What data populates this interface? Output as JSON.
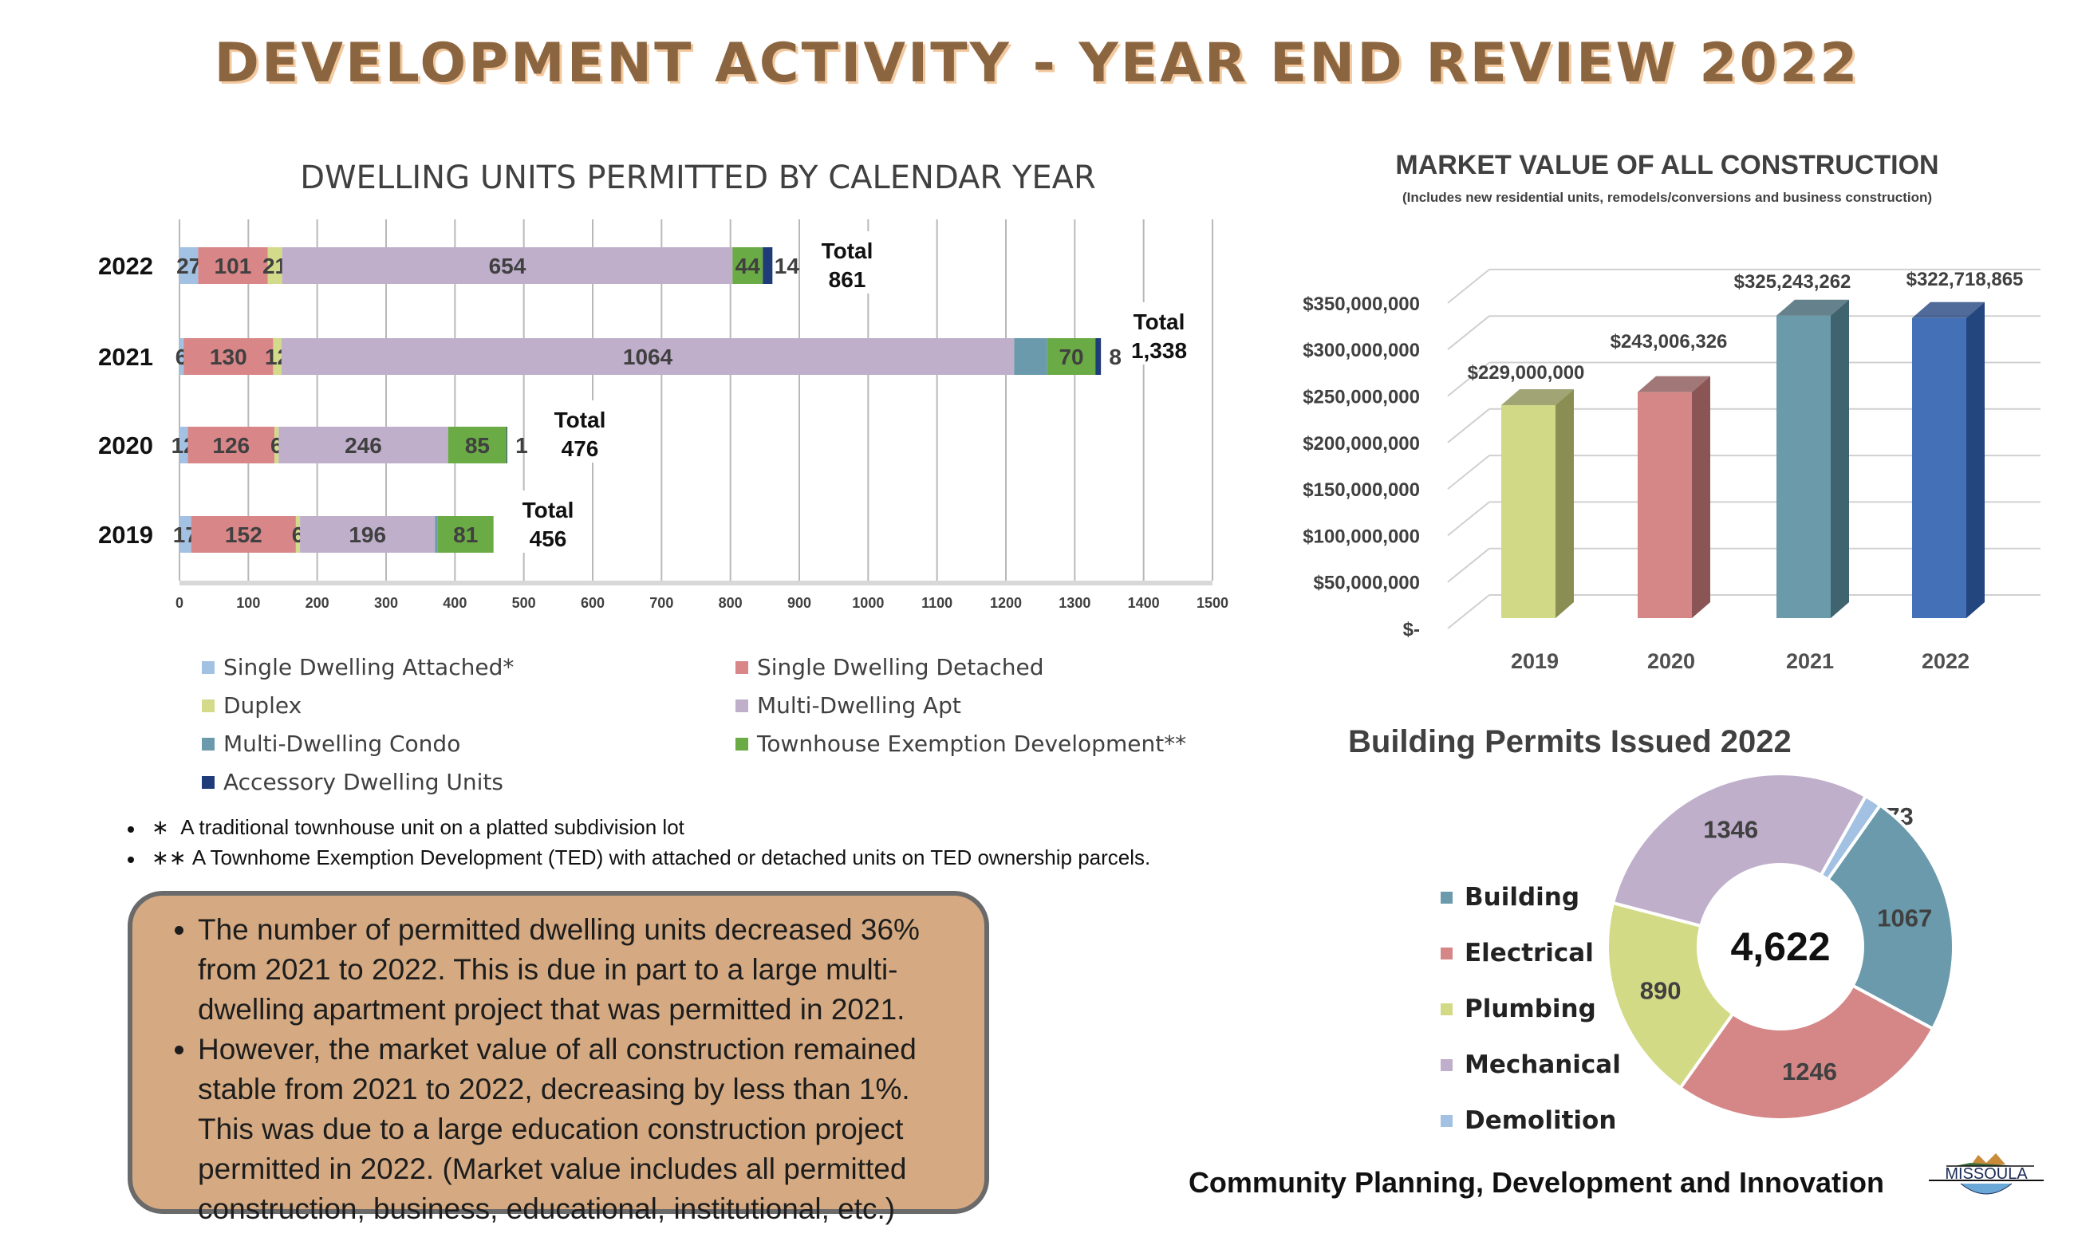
{
  "title": "DEVELOPMENT ACTIVITY - YEAR END REVIEW 2022",
  "chart_data": [
    {
      "type": "bar",
      "orientation": "horizontal",
      "stacked": true,
      "title": "DWELLING UNITS PERMITTED BY CALENDAR YEAR",
      "categories": [
        "2022",
        "2021",
        "2020",
        "2019"
      ],
      "xlim": [
        0,
        1500
      ],
      "xticks": [
        "0",
        "100",
        "200",
        "300",
        "400",
        "500",
        "600",
        "700",
        "800",
        "900",
        "1000",
        "1100",
        "1200",
        "1300",
        "1400",
        "1500"
      ],
      "grid": true,
      "legend_position": "bottom",
      "series": [
        {
          "name": "Single Dwelling Attached*",
          "color": "#a3c1e3",
          "values": [
            27,
            6,
            12,
            17
          ],
          "labels": [
            "27",
            "6",
            "12",
            "17"
          ]
        },
        {
          "name": "Single Dwelling Detached",
          "color": "#d88688",
          "values": [
            101,
            130,
            126,
            152
          ],
          "labels": [
            "101",
            "130",
            "126",
            "152"
          ]
        },
        {
          "name": "Duplex",
          "color": "#d3da89",
          "values": [
            21,
            12,
            6,
            6
          ],
          "labels": [
            "21",
            "12",
            "6",
            "6"
          ]
        },
        {
          "name": "Multi-Dwelling Apt",
          "color": "#bfafcb",
          "values": [
            654,
            1064,
            246,
            196
          ],
          "labels": [
            "654",
            "1064",
            "246",
            "196"
          ]
        },
        {
          "name": "Multi-Dwelling Condo",
          "color": "#6a9aab",
          "values": [
            0,
            48,
            0,
            4
          ],
          "labels": [
            "",
            "",
            "",
            ""
          ]
        },
        {
          "name": "Townhouse Exemption Development**",
          "color": "#6aab45",
          "values": [
            44,
            70,
            85,
            81
          ],
          "labels": [
            "44",
            "70",
            "85",
            "81"
          ]
        },
        {
          "name": "Accessory Dwelling Units",
          "color": "#1f3b78",
          "values": [
            14,
            8,
            1,
            0
          ],
          "labels": [
            "14",
            "8",
            "1",
            ""
          ]
        }
      ],
      "totals": [
        {
          "label": "Total",
          "value": "861"
        },
        {
          "label": "Total",
          "value": "1,338"
        },
        {
          "label": "Total",
          "value": "476"
        },
        {
          "label": "Total",
          "value": "456"
        }
      ]
    },
    {
      "type": "bar",
      "style": "3d-column",
      "title": "MARKET VALUE OF ALL CONSTRUCTION",
      "subtitle": "(Includes new residential units,  remodels/conversions and business construction)",
      "categories": [
        "2019",
        "2020",
        "2021",
        "2022"
      ],
      "values": [
        229000000,
        243006326,
        325243262,
        322718865
      ],
      "data_labels": [
        "$229,000,000",
        "$243,006,326",
        "$325,243,262",
        "$322,718,865"
      ],
      "colors": [
        "#d1d987",
        "#d58787",
        "#6b9bab",
        "#4470b8"
      ],
      "side_colors": [
        "#8a8e52",
        "#8b5555",
        "#3f636f",
        "#24467f"
      ],
      "ylim": [
        0,
        350000000
      ],
      "yticks": [
        "$-",
        "$50,000,000",
        "$100,000,000",
        "$150,000,000",
        "$200,000,000",
        "$250,000,000",
        "$300,000,000",
        "$350,000,000"
      ],
      "grid": true
    },
    {
      "type": "pie",
      "style": "donut",
      "title": "Building Permits Issued 2022",
      "center_label": "4,622",
      "legend_position": "left",
      "slices": [
        {
          "name": "Demolition",
          "value": 73,
          "color": "#a3c1e3"
        },
        {
          "name": "Building",
          "value": 1067,
          "color": "#6a9aab"
        },
        {
          "name": "Electrical",
          "value": 1246,
          "color": "#d58787"
        },
        {
          "name": "Plumbing",
          "value": 890,
          "color": "#d3da86"
        },
        {
          "name": "Mechanical",
          "value": 1346,
          "color": "#bfafcb"
        }
      ],
      "legend_order": [
        "Building",
        "Electrical",
        "Plumbing",
        "Mechanical",
        "Demolition"
      ]
    }
  ],
  "footnotes": [
    {
      "marker": "∗",
      "text": "A traditional townhouse unit on a platted subdivision lot"
    },
    {
      "marker": "∗∗",
      "text": "A Townhome Exemption Development (TED) with attached or detached units on TED ownership parcels."
    }
  ],
  "summary": [
    "The number of permitted dwelling units decreased 36% from 2021 to 2022.  This is due in part to a large multi-dwelling apartment project that was permitted in 2021.",
    "However, the market value of all construction remained stable from 2021 to 2022, decreasing by less than 1%.  This was due to a large education construction project permitted in 2022. (Market value includes all permitted construction, business, educational, institutional, etc.)"
  ],
  "footer": "Community Planning, Development and Innovation",
  "logo": {
    "text": "MISSOULA"
  }
}
